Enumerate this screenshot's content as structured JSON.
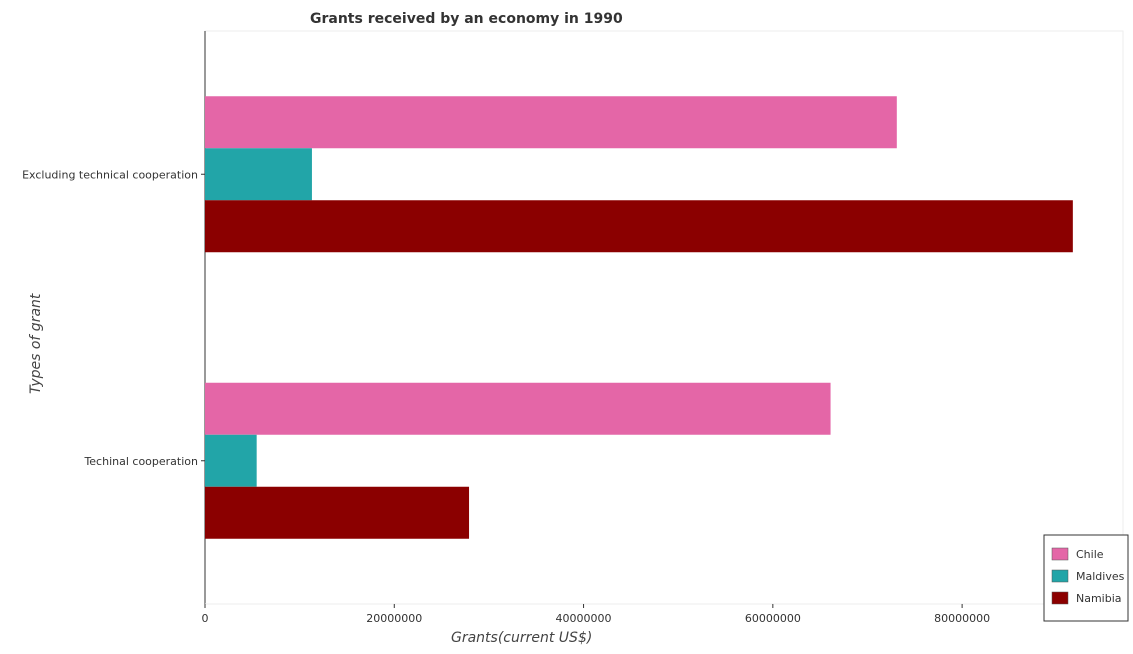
{
  "chart_data": {
    "type": "bar",
    "orientation": "horizontal",
    "title": "Grants received by an economy in 1990",
    "xlabel": "Grants(current US$)",
    "ylabel": "Types of grant",
    "categories": [
      "Excluding technical cooperation",
      "Techinal cooperation"
    ],
    "series": [
      {
        "name": "Chile",
        "color": "#e466a7",
        "values": [
          73100000,
          66100000
        ]
      },
      {
        "name": "Maldives",
        "color": "#22a5a8",
        "values": [
          11300000,
          5460000
        ]
      },
      {
        "name": "Namibia",
        "color": "#8b0000",
        "values": [
          91700000,
          27900000
        ]
      }
    ],
    "xlim": [
      0,
      97000000
    ],
    "xticks": [
      0,
      20000000,
      40000000,
      60000000,
      80000000
    ],
    "xtick_labels": [
      "0",
      "20000000",
      "40000000",
      "60000000",
      "80000000"
    ],
    "grid": false,
    "legend_position": "bottom-right"
  }
}
